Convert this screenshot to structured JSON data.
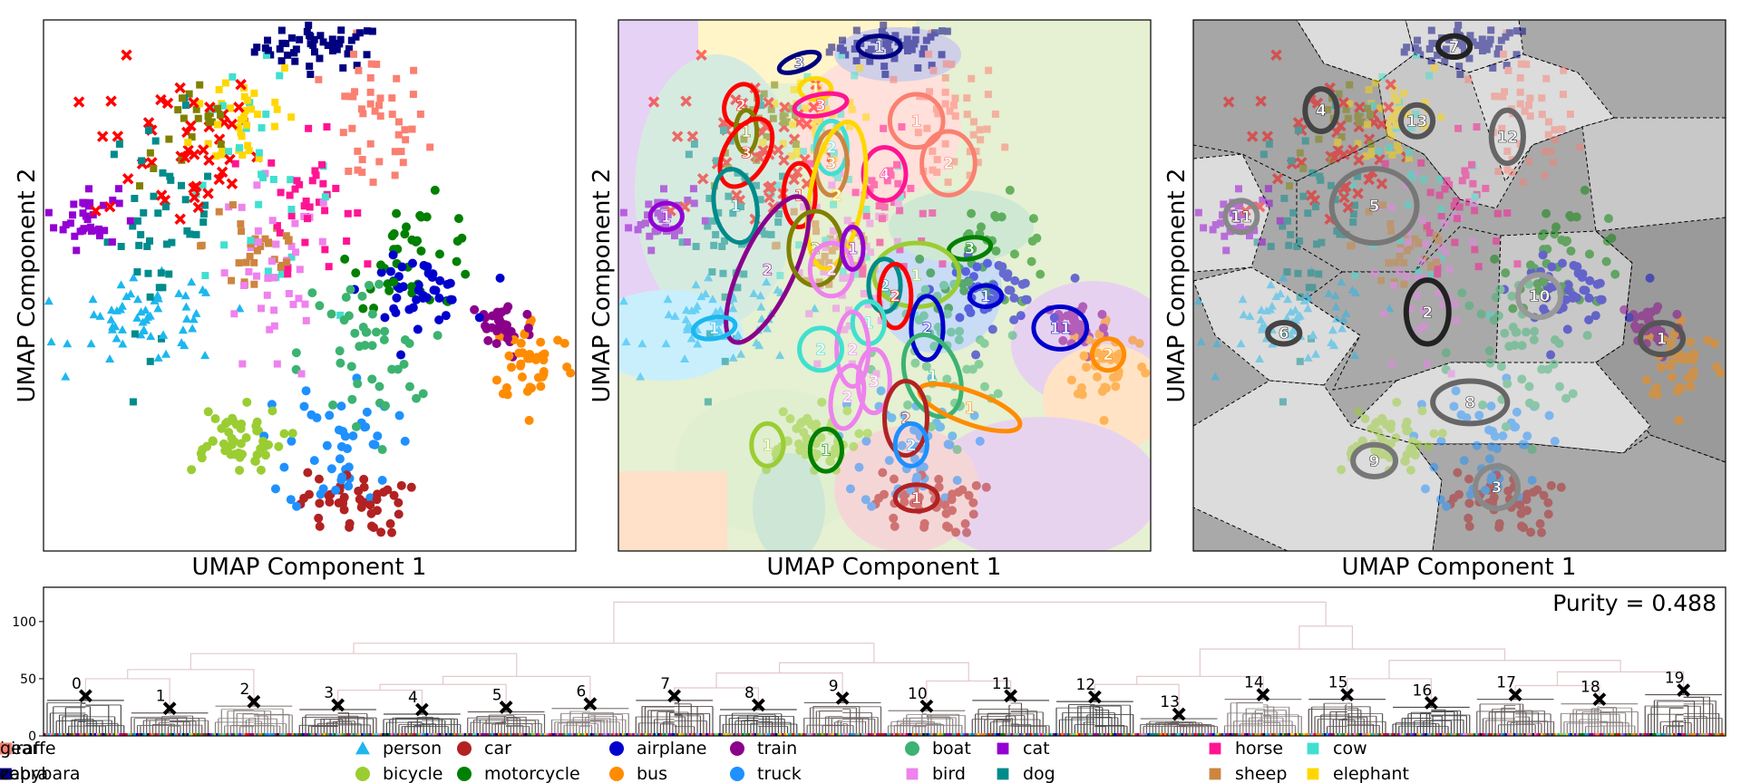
{
  "panels": [
    {
      "xlabel": "UMAP Component 1",
      "ylabel": "UMAP Component 2"
    },
    {
      "xlabel": "UMAP Component 1",
      "ylabel": "UMAP Component 2"
    },
    {
      "xlabel": "UMAP Component 1",
      "ylabel": "UMAP Component 2"
    }
  ],
  "purity_text": "Purity = 0.488",
  "classes": [
    {
      "name": "person",
      "color": "#1cb7ef",
      "marker": "triangle"
    },
    {
      "name": "bicycle",
      "color": "#9acd32",
      "marker": "circle"
    },
    {
      "name": "car",
      "color": "#b22222",
      "marker": "circle"
    },
    {
      "name": "motorcycle",
      "color": "#008000",
      "marker": "circle"
    },
    {
      "name": "airplane",
      "color": "#0000cd",
      "marker": "circle"
    },
    {
      "name": "bus",
      "color": "#ff8c00",
      "marker": "circle"
    },
    {
      "name": "train",
      "color": "#8b008b",
      "marker": "circle"
    },
    {
      "name": "truck",
      "color": "#1e90ff",
      "marker": "circle"
    },
    {
      "name": "boat",
      "color": "#3cb371",
      "marker": "circle"
    },
    {
      "name": "bird",
      "color": "#ee82ee",
      "marker": "square"
    },
    {
      "name": "cat",
      "color": "#9400d3",
      "marker": "square"
    },
    {
      "name": "dog",
      "color": "#008b8b",
      "marker": "square"
    },
    {
      "name": "horse",
      "color": "#ff1493",
      "marker": "square"
    },
    {
      "name": "sheep",
      "color": "#cd853f",
      "marker": "square"
    },
    {
      "name": "cow",
      "color": "#40e0d0",
      "marker": "square"
    },
    {
      "name": "elephant",
      "color": "#ffd700",
      "marker": "square"
    },
    {
      "name": "bear",
      "color": "#808000",
      "marker": "square"
    },
    {
      "name": "zebra",
      "color": "#000080",
      "marker": "square"
    },
    {
      "name": "giraffe",
      "color": "#fa8072",
      "marker": "square"
    },
    {
      "name": "capybara",
      "color": "#ff0000",
      "marker": "x"
    }
  ],
  "chart_data": [
    {
      "type": "scatter",
      "xlabel": "UMAP Component 1",
      "ylabel": "UMAP Component 2",
      "grid": false,
      "clusters": [
        {
          "class": "zebra",
          "x": 0.52,
          "y": 0.95,
          "sx": 0.06,
          "sy": 0.02,
          "n": 50
        },
        {
          "class": "giraffe",
          "x": 0.62,
          "y": 0.8,
          "sx": 0.05,
          "sy": 0.07,
          "n": 45
        },
        {
          "class": "capybara",
          "x": 0.25,
          "y": 0.76,
          "sx": 0.08,
          "sy": 0.08,
          "n": 45
        },
        {
          "class": "elephant",
          "x": 0.38,
          "y": 0.82,
          "sx": 0.05,
          "sy": 0.06,
          "n": 35
        },
        {
          "class": "horse",
          "x": 0.5,
          "y": 0.66,
          "sx": 0.04,
          "sy": 0.06,
          "n": 35
        },
        {
          "class": "cat",
          "x": 0.08,
          "y": 0.63,
          "sx": 0.03,
          "sy": 0.03,
          "n": 35
        },
        {
          "class": "dog",
          "x": 0.22,
          "y": 0.62,
          "sx": 0.05,
          "sy": 0.1,
          "n": 45
        },
        {
          "class": "cow",
          "x": 0.4,
          "y": 0.7,
          "sx": 0.07,
          "sy": 0.1,
          "n": 30
        },
        {
          "class": "bear",
          "x": 0.28,
          "y": 0.78,
          "sx": 0.05,
          "sy": 0.05,
          "n": 20
        },
        {
          "class": "sheep",
          "x": 0.4,
          "y": 0.58,
          "sx": 0.05,
          "sy": 0.07,
          "n": 30
        },
        {
          "class": "bird",
          "x": 0.43,
          "y": 0.5,
          "sx": 0.06,
          "sy": 0.1,
          "n": 40
        },
        {
          "class": "person",
          "x": 0.2,
          "y": 0.43,
          "sx": 0.07,
          "sy": 0.04,
          "n": 60
        },
        {
          "class": "motorcycle",
          "x": 0.7,
          "y": 0.56,
          "sx": 0.06,
          "sy": 0.05,
          "n": 40
        },
        {
          "class": "airplane",
          "x": 0.7,
          "y": 0.49,
          "sx": 0.05,
          "sy": 0.03,
          "n": 45
        },
        {
          "class": "boat",
          "x": 0.6,
          "y": 0.37,
          "sx": 0.06,
          "sy": 0.08,
          "n": 45
        },
        {
          "class": "train",
          "x": 0.86,
          "y": 0.42,
          "sx": 0.03,
          "sy": 0.03,
          "n": 35
        },
        {
          "class": "bus",
          "x": 0.92,
          "y": 0.36,
          "sx": 0.04,
          "sy": 0.04,
          "n": 40
        },
        {
          "class": "truck",
          "x": 0.56,
          "y": 0.2,
          "sx": 0.05,
          "sy": 0.07,
          "n": 45
        },
        {
          "class": "bicycle",
          "x": 0.35,
          "y": 0.21,
          "sx": 0.05,
          "sy": 0.03,
          "n": 50
        },
        {
          "class": "car",
          "x": 0.58,
          "y": 0.09,
          "sx": 0.05,
          "sy": 0.03,
          "n": 45
        }
      ]
    },
    {
      "type": "scatter",
      "xlabel": "UMAP Component 1",
      "ylabel": "UMAP Component 2",
      "grid": false,
      "ellipses": [
        {
          "label": "1",
          "class": "zebra",
          "x": 0.49,
          "y": 0.95,
          "rx": 0.04,
          "ry": 0.02,
          "angle": 0
        },
        {
          "label": "3",
          "class": "zebra",
          "x": 0.34,
          "y": 0.92,
          "rx": 0.04,
          "ry": 0.015,
          "angle": -20
        },
        {
          "label": "1",
          "class": "elephant",
          "x": 0.37,
          "y": 0.87,
          "rx": 0.03,
          "ry": 0.02,
          "angle": 0
        },
        {
          "label": "3",
          "class": "horse",
          "x": 0.38,
          "y": 0.84,
          "rx": 0.05,
          "ry": 0.02,
          "angle": -10
        },
        {
          "label": "2",
          "class": "capybara",
          "x": 0.23,
          "y": 0.84,
          "rx": 0.03,
          "ry": 0.04,
          "angle": 20
        },
        {
          "label": "1",
          "class": "giraffe",
          "x": 0.56,
          "y": 0.81,
          "rx": 0.05,
          "ry": 0.05,
          "angle": 0
        },
        {
          "label": "2",
          "class": "giraffe",
          "x": 0.62,
          "y": 0.73,
          "rx": 0.05,
          "ry": 0.06,
          "angle": 0
        },
        {
          "label": "1",
          "class": "bear",
          "x": 0.24,
          "y": 0.79,
          "rx": 0.02,
          "ry": 0.04,
          "angle": 0
        },
        {
          "label": "3",
          "class": "capybara",
          "x": 0.24,
          "y": 0.75,
          "rx": 0.04,
          "ry": 0.07,
          "angle": 30
        },
        {
          "label": "2",
          "class": "cow",
          "x": 0.4,
          "y": 0.76,
          "rx": 0.03,
          "ry": 0.05,
          "angle": 0
        },
        {
          "label": "3",
          "class": "sheep",
          "x": 0.4,
          "y": 0.73,
          "rx": 0.03,
          "ry": 0.06,
          "angle": 0
        },
        {
          "label": "4",
          "class": "horse",
          "x": 0.5,
          "y": 0.71,
          "rx": 0.04,
          "ry": 0.05,
          "angle": 0
        },
        {
          "label": "1",
          "class": "capybara",
          "x": 0.34,
          "y": 0.67,
          "rx": 0.03,
          "ry": 0.06,
          "angle": 0
        },
        {
          "label": "2",
          "class": "elephant",
          "x": 0.41,
          "y": 0.67,
          "rx": 0.05,
          "ry": 0.14,
          "angle": 10
        },
        {
          "label": "1",
          "class": "dog",
          "x": 0.22,
          "y": 0.65,
          "rx": 0.04,
          "ry": 0.07,
          "angle": -10
        },
        {
          "label": "1",
          "class": "cat",
          "x": 0.09,
          "y": 0.63,
          "rx": 0.03,
          "ry": 0.025,
          "angle": 0
        },
        {
          "label": "2",
          "class": "train",
          "x": 0.28,
          "y": 0.53,
          "rx": 0.05,
          "ry": 0.15,
          "angle": 25
        },
        {
          "label": "2",
          "class": "bear",
          "x": 0.37,
          "y": 0.57,
          "rx": 0.05,
          "ry": 0.07,
          "angle": 0
        },
        {
          "label": "2",
          "class": "bird",
          "x": 0.4,
          "y": 0.53,
          "rx": 0.04,
          "ry": 0.05,
          "angle": 0
        },
        {
          "label": "1",
          "class": "cat",
          "x": 0.44,
          "y": 0.57,
          "rx": 0.02,
          "ry": 0.04,
          "angle": 0
        },
        {
          "label": "3",
          "class": "motorcycle",
          "x": 0.66,
          "y": 0.57,
          "rx": 0.04,
          "ry": 0.02,
          "angle": -10
        },
        {
          "label": "1",
          "class": "bicycle",
          "x": 0.56,
          "y": 0.52,
          "rx": 0.08,
          "ry": 0.06,
          "angle": 0
        },
        {
          "label": "2",
          "class": "dog",
          "x": 0.5,
          "y": 0.5,
          "rx": 0.03,
          "ry": 0.05,
          "angle": 0
        },
        {
          "label": "2",
          "class": "capybara",
          "x": 0.52,
          "y": 0.48,
          "rx": 0.03,
          "ry": 0.06,
          "angle": 0
        },
        {
          "label": "1",
          "class": "airplane",
          "x": 0.69,
          "y": 0.48,
          "rx": 0.03,
          "ry": 0.02,
          "angle": 0
        },
        {
          "label": "1",
          "class": "person",
          "x": 0.18,
          "y": 0.42,
          "rx": 0.04,
          "ry": 0.02,
          "angle": -10
        },
        {
          "label": "11",
          "class": "airplane",
          "x": 0.83,
          "y": 0.42,
          "rx": 0.05,
          "ry": 0.04,
          "angle": 0
        },
        {
          "label": "1",
          "class": "cow",
          "x": 0.47,
          "y": 0.43,
          "rx": 0.03,
          "ry": 0.04,
          "angle": 0
        },
        {
          "label": "2",
          "class": "airplane",
          "x": 0.58,
          "y": 0.42,
          "rx": 0.03,
          "ry": 0.06,
          "angle": 0
        },
        {
          "label": "2",
          "class": "bird",
          "x": 0.44,
          "y": 0.38,
          "rx": 0.03,
          "ry": 0.07,
          "angle": 0
        },
        {
          "label": "2",
          "class": "cow",
          "x": 0.38,
          "y": 0.38,
          "rx": 0.04,
          "ry": 0.04,
          "angle": 0
        },
        {
          "label": "1",
          "class": "boat",
          "x": 0.59,
          "y": 0.33,
          "rx": 0.05,
          "ry": 0.08,
          "angle": -20
        },
        {
          "label": "3",
          "class": "bird",
          "x": 0.48,
          "y": 0.32,
          "rx": 0.03,
          "ry": 0.06,
          "angle": 0
        },
        {
          "label": "2",
          "class": "bird",
          "x": 0.43,
          "y": 0.29,
          "rx": 0.03,
          "ry": 0.06,
          "angle": 10
        },
        {
          "label": "2",
          "class": "bus",
          "x": 0.92,
          "y": 0.37,
          "rx": 0.03,
          "ry": 0.03,
          "angle": 0
        },
        {
          "label": "1",
          "class": "bus",
          "x": 0.66,
          "y": 0.27,
          "rx": 0.1,
          "ry": 0.03,
          "angle": 20
        },
        {
          "label": "2",
          "class": "car",
          "x": 0.54,
          "y": 0.25,
          "rx": 0.04,
          "ry": 0.07,
          "angle": 0
        },
        {
          "label": "2",
          "class": "truck",
          "x": 0.55,
          "y": 0.2,
          "rx": 0.03,
          "ry": 0.04,
          "angle": 0
        },
        {
          "label": "1",
          "class": "motorcycle",
          "x": 0.39,
          "y": 0.19,
          "rx": 0.03,
          "ry": 0.04,
          "angle": 0
        },
        {
          "label": "1",
          "class": "bicycle",
          "x": 0.28,
          "y": 0.2,
          "rx": 0.03,
          "ry": 0.04,
          "angle": 0
        },
        {
          "label": "1",
          "class": "car",
          "x": 0.56,
          "y": 0.1,
          "rx": 0.04,
          "ry": 0.025,
          "angle": 0
        }
      ]
    },
    {
      "type": "scatter",
      "xlabel": "UMAP Component 1",
      "ylabel": "UMAP Component 2",
      "grid": false,
      "ellipses": [
        {
          "label": "7",
          "x": 0.49,
          "y": 0.95,
          "rx": 0.03,
          "ry": 0.02
        },
        {
          "label": "4",
          "x": 0.24,
          "y": 0.83,
          "rx": 0.03,
          "ry": 0.04
        },
        {
          "label": "13",
          "x": 0.42,
          "y": 0.81,
          "rx": 0.03,
          "ry": 0.03
        },
        {
          "label": "12",
          "x": 0.59,
          "y": 0.78,
          "rx": 0.03,
          "ry": 0.05
        },
        {
          "label": "5",
          "x": 0.34,
          "y": 0.65,
          "rx": 0.08,
          "ry": 0.07
        },
        {
          "label": "11",
          "x": 0.09,
          "y": 0.63,
          "rx": 0.03,
          "ry": 0.03
        },
        {
          "label": "10",
          "x": 0.65,
          "y": 0.48,
          "rx": 0.04,
          "ry": 0.04
        },
        {
          "label": "2",
          "x": 0.44,
          "y": 0.45,
          "rx": 0.04,
          "ry": 0.06
        },
        {
          "label": "6",
          "x": 0.17,
          "y": 0.41,
          "rx": 0.03,
          "ry": 0.02
        },
        {
          "label": "1",
          "x": 0.88,
          "y": 0.4,
          "rx": 0.04,
          "ry": 0.03
        },
        {
          "label": "8",
          "x": 0.52,
          "y": 0.28,
          "rx": 0.07,
          "ry": 0.04
        },
        {
          "label": "9",
          "x": 0.34,
          "y": 0.17,
          "rx": 0.04,
          "ry": 0.03
        },
        {
          "label": "3",
          "x": 0.57,
          "y": 0.12,
          "rx": 0.04,
          "ry": 0.04
        }
      ]
    },
    {
      "type": "dendrogram",
      "yticks": [
        0,
        50,
        100
      ],
      "ylim": [
        0,
        130
      ],
      "clusters": [
        {
          "label": "0",
          "height": 35
        },
        {
          "label": "1",
          "height": 24
        },
        {
          "label": "2",
          "height": 30
        },
        {
          "label": "3",
          "height": 27
        },
        {
          "label": "4",
          "height": 23
        },
        {
          "label": "5",
          "height": 25
        },
        {
          "label": "6",
          "height": 28
        },
        {
          "label": "7",
          "height": 35
        },
        {
          "label": "8",
          "height": 27
        },
        {
          "label": "9",
          "height": 33
        },
        {
          "label": "10",
          "height": 26
        },
        {
          "label": "11",
          "height": 35
        },
        {
          "label": "12",
          "height": 34
        },
        {
          "label": "13",
          "height": 19
        },
        {
          "label": "14",
          "height": 36
        },
        {
          "label": "15",
          "height": 36
        },
        {
          "label": "16",
          "height": 29
        },
        {
          "label": "17",
          "height": 36
        },
        {
          "label": "18",
          "height": 32
        },
        {
          "label": "19",
          "height": 40
        }
      ],
      "top_merge_height": 117
    }
  ]
}
